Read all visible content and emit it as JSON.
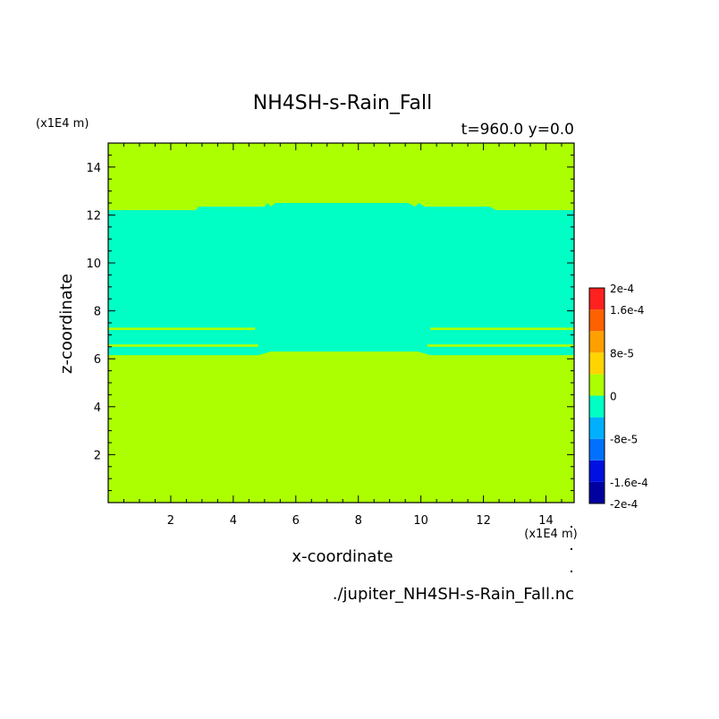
{
  "chart_data": {
    "type": "heatmap",
    "title": "NH4SH-s-Rain_Fall",
    "subtitle": "t=960.0 y=0.0",
    "xlabel": "x-coordinate",
    "ylabel": "z-coordinate",
    "x_unit": "(x1E4 m)",
    "y_unit": "(x1E4 m)",
    "footer": "./jupiter_NH4SH-s-Rain_Fall.nc",
    "xlim": [
      0.0,
      14.9
    ],
    "ylim": [
      0.0,
      15.0
    ],
    "x_ticks": [
      2,
      4,
      6,
      8,
      10,
      12,
      14
    ],
    "y_ticks": [
      2,
      4,
      6,
      8,
      10,
      12,
      14
    ],
    "background_value": 0,
    "field": {
      "description_of_regions": "value ~ 0 everywhere except a negative band",
      "negative_band_value": -4e-05,
      "negative_band_top_profile": [
        [
          0.0,
          12.2
        ],
        [
          2.8,
          12.2
        ],
        [
          2.9,
          12.35
        ],
        [
          5.0,
          12.35
        ],
        [
          5.1,
          12.5
        ],
        [
          5.2,
          12.35
        ],
        [
          5.35,
          12.5
        ],
        [
          9.6,
          12.5
        ],
        [
          9.8,
          12.35
        ],
        [
          9.95,
          12.5
        ],
        [
          10.1,
          12.35
        ],
        [
          12.2,
          12.35
        ],
        [
          12.4,
          12.2
        ],
        [
          14.9,
          12.2
        ]
      ],
      "negative_band_bottom_profile": [
        [
          0.0,
          6.15
        ],
        [
          4.8,
          6.15
        ],
        [
          5.2,
          6.3
        ],
        [
          9.9,
          6.3
        ],
        [
          10.3,
          6.15
        ],
        [
          14.9,
          6.15
        ]
      ],
      "zero_streaks": [
        {
          "x": [
            0.0,
            4.7
          ],
          "z": [
            7.2,
            7.3
          ]
        },
        {
          "x": [
            10.3,
            14.9
          ],
          "z": [
            7.2,
            7.3
          ]
        },
        {
          "x": [
            0.0,
            4.8
          ],
          "z": [
            6.5,
            6.6
          ]
        },
        {
          "x": [
            10.2,
            14.9
          ],
          "z": [
            6.5,
            6.6
          ]
        }
      ]
    },
    "colorbar": {
      "tick_labels": [
        "2e-4",
        "1.6e-4",
        "8e-5",
        "0",
        "-8e-5",
        "-1.6e-4",
        "-2e-4"
      ],
      "tick_values": [
        0.0002,
        0.00016,
        8e-05,
        0,
        -8e-05,
        -0.00016,
        -0.0002
      ],
      "levels": [
        -0.0002,
        -0.00016,
        -0.00012,
        -8e-05,
        -4e-05,
        0,
        4e-05,
        8e-05,
        0.00012,
        0.00016,
        0.0002
      ],
      "colors": [
        "#0000a0",
        "#0010e0",
        "#0070ff",
        "#00b0ff",
        "#00ffc4",
        "#acff00",
        "#ffd400",
        "#ffa000",
        "#ff6000",
        "#ff2020"
      ]
    },
    "colors": {
      "zero": "#acff00",
      "negative": "#00ffc4"
    }
  }
}
